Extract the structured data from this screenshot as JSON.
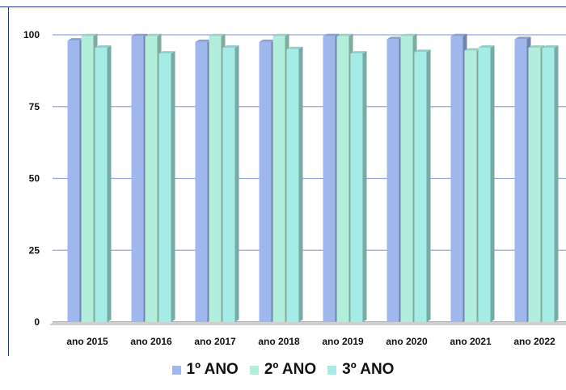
{
  "chart_data": {
    "type": "bar",
    "categories": [
      "ano 2015",
      "ano 2016",
      "ano 2017",
      "ano 2018",
      "ano 2019",
      "ano 2020",
      "ano 2021",
      "ano 2022"
    ],
    "series": [
      {
        "name": "1º ANO",
        "color": "#9fb7ec",
        "values": [
          98,
          99.5,
          97.5,
          97.5,
          99.5,
          98.5,
          99.5,
          98.5
        ]
      },
      {
        "name": "2º ANO",
        "color": "#b3eedd",
        "values": [
          99.5,
          99.5,
          99.5,
          99.5,
          99.5,
          99.5,
          94.5,
          95.5
        ]
      },
      {
        "name": "3º ANO",
        "color": "#a6ece6",
        "values": [
          95.5,
          93.5,
          95.5,
          95,
          93.5,
          94,
          95.5,
          95.5
        ]
      }
    ],
    "yticks": [
      0,
      25,
      50,
      75,
      100
    ],
    "ylim": [
      0,
      100
    ],
    "grid": true,
    "legend_position": "bottom"
  }
}
